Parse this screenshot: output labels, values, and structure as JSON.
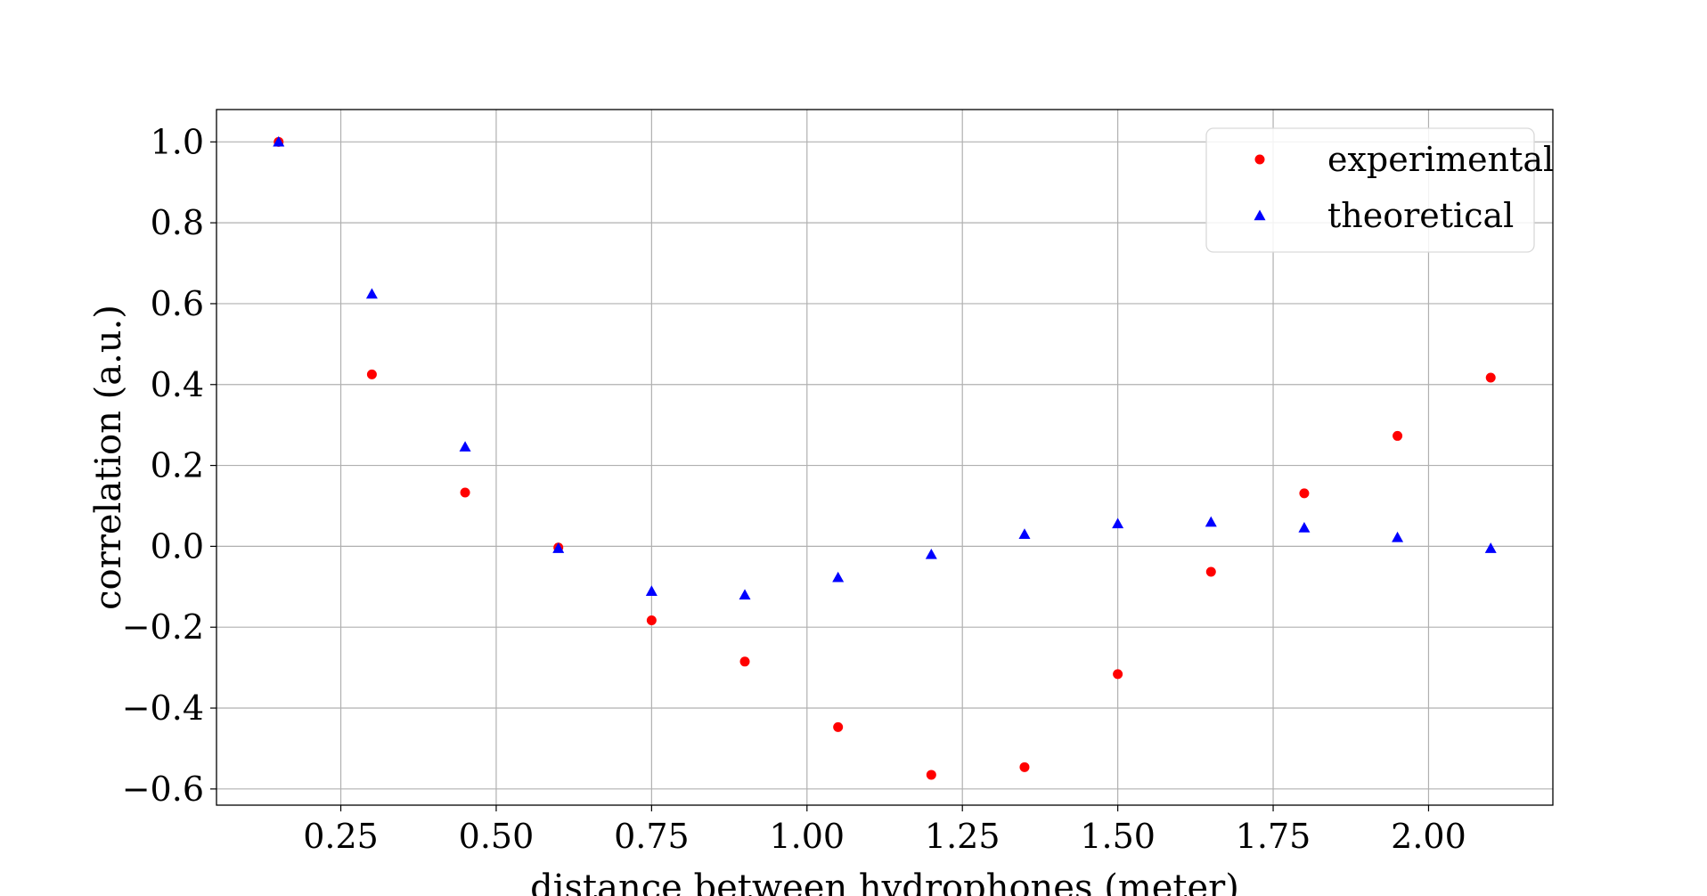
{
  "chart_data": {
    "type": "scatter",
    "title": "",
    "xlabel": "distance between hydrophones (meter)",
    "ylabel": "correlation (a.u.)",
    "xlim": [
      0.05,
      2.2
    ],
    "ylim": [
      -0.64,
      1.08
    ],
    "xticks": [
      0.25,
      0.5,
      0.75,
      1.0,
      1.25,
      1.5,
      1.75,
      2.0
    ],
    "xtick_labels": [
      "0.25",
      "0.50",
      "0.75",
      "1.00",
      "1.25",
      "1.50",
      "1.75",
      "2.00"
    ],
    "yticks": [
      1.0,
      0.8,
      0.6,
      0.4,
      0.2,
      0.0,
      -0.2,
      -0.4,
      -0.6
    ],
    "ytick_labels": [
      "1.0",
      "0.8",
      "0.6",
      "0.4",
      "0.2",
      "0.0",
      "−0.2",
      "−0.4",
      "−0.6"
    ],
    "grid": true,
    "legend_position": "top-right",
    "series": [
      {
        "name": "experimental",
        "marker": "circle",
        "color": "#ff0000",
        "x": [
          0.15,
          0.3,
          0.45,
          0.6,
          0.75,
          0.9,
          1.05,
          1.2,
          1.35,
          1.5,
          1.65,
          1.8,
          1.95,
          2.1
        ],
        "y": [
          1.0,
          0.425,
          0.133,
          -0.003,
          -0.183,
          -0.285,
          -0.447,
          -0.565,
          -0.546,
          -0.316,
          -0.063,
          0.131,
          0.273,
          0.417
        ]
      },
      {
        "name": "theoretical",
        "marker": "triangle",
        "color": "#0000ff",
        "x": [
          0.15,
          0.3,
          0.45,
          0.6,
          0.75,
          0.9,
          1.05,
          1.2,
          1.35,
          1.5,
          1.65,
          1.8,
          1.95,
          2.1
        ],
        "y": [
          1.0,
          0.624,
          0.246,
          -0.005,
          -0.111,
          -0.12,
          -0.077,
          -0.02,
          0.03,
          0.056,
          0.06,
          0.046,
          0.022,
          -0.005
        ]
      }
    ]
  }
}
